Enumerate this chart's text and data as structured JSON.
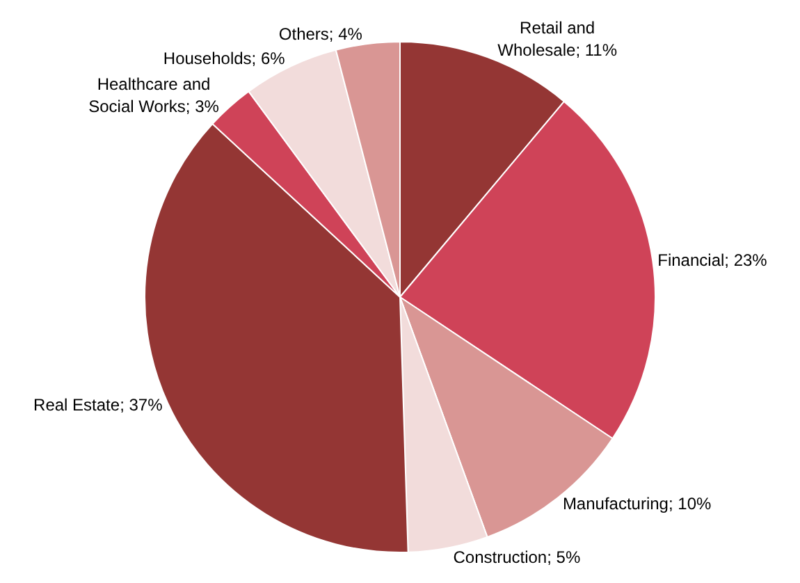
{
  "chart_data": {
    "type": "pie",
    "categories": [
      "Retail and Wholesale",
      "Financial",
      "Manufacturing",
      "Construction",
      "Real Estate",
      "Healthcare and Social Works",
      "Households",
      "Others"
    ],
    "values": [
      11,
      23,
      10,
      5,
      37,
      3,
      6,
      4
    ],
    "value_labels": [
      "11%",
      "23%",
      "10%",
      "5%",
      "37%",
      "3%",
      "6%",
      "4%"
    ],
    "colors": [
      "#943634",
      "#cf4358",
      "#d99694",
      "#f2dcdb",
      "#943634",
      "#cf4358",
      "#f2dcdb",
      "#d99694"
    ],
    "legend": false
  }
}
